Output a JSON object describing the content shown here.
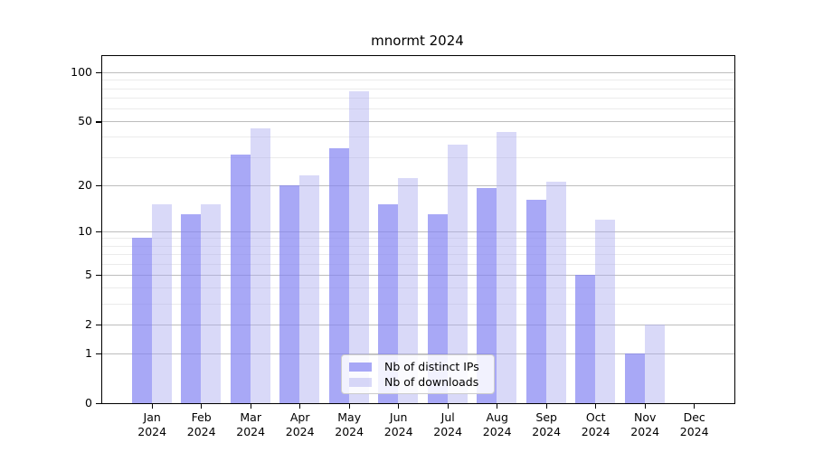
{
  "chart_data": {
    "type": "bar",
    "title": "mnormt 2024",
    "categories": [
      "Jan 2024",
      "Feb 2024",
      "Mar 2024",
      "Apr 2024",
      "May 2024",
      "Jun 2024",
      "Jul 2024",
      "Aug 2024",
      "Sep 2024",
      "Oct 2024",
      "Nov 2024",
      "Dec 2024"
    ],
    "series": [
      {
        "name": "Nb of distinct IPs",
        "color": "rgba(131,131,242,0.70)",
        "values": [
          9,
          13,
          31,
          20,
          34,
          15,
          13,
          19,
          16,
          5,
          1,
          0
        ]
      },
      {
        "name": "Nb of downloads",
        "color": "rgba(171,171,239,0.45)",
        "values": [
          15,
          15,
          45,
          23,
          77,
          22,
          36,
          43,
          21,
          12,
          2,
          0
        ]
      }
    ],
    "yscale": "log1p",
    "ylim": [
      0,
      126
    ],
    "y_major_ticks": [
      100,
      50,
      20,
      10,
      5,
      2,
      1,
      0
    ],
    "y_minor_gridlines": [
      90,
      80,
      70,
      60,
      40,
      30,
      9,
      8,
      7,
      6,
      4,
      3
    ],
    "grid": "on",
    "legend_position": "lower-center",
    "colors": {
      "major_grid": "#bdbdbd",
      "minor_grid": "#ebebeb",
      "axis": "#000000",
      "background": "#ffffff"
    }
  }
}
